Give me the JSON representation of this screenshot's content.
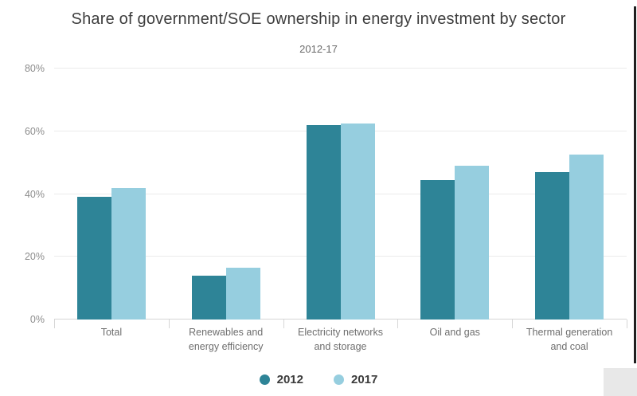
{
  "chart_data": {
    "type": "bar",
    "title": "Share of government/SOE ownership in energy investment by sector",
    "subtitle": "2012-17",
    "categories": [
      "Total",
      "Renewables and\nenergy efficiency",
      "Electricity networks\nand storage",
      "Oil and gas",
      "Thermal generation\nand coal"
    ],
    "series": [
      {
        "name": "2012",
        "color": "#2E8497",
        "values": [
          39,
          14,
          62,
          44.5,
          47
        ]
      },
      {
        "name": "2017",
        "color": "#96CEDF",
        "values": [
          42,
          16.5,
          62.5,
          49,
          52.5
        ]
      }
    ],
    "xlabel": "",
    "ylabel": "",
    "ylim": [
      0,
      80
    ],
    "y_tick_step": 20,
    "y_tick_labels": [
      "0%",
      "20%",
      "40%",
      "60%",
      "80%"
    ],
    "grid": true,
    "legend_position": "bottom"
  },
  "legend": {
    "items": [
      {
        "label": "2012",
        "color": "#2E8497"
      },
      {
        "label": "2017",
        "color": "#96CEDF"
      }
    ]
  },
  "colors": {
    "series_2012": "#2E8497",
    "series_2017": "#96CEDF",
    "grid": "#EBEBEB",
    "axis": "#D6D6D6",
    "title_text": "#3D3D3D",
    "subtitle_text": "#6A6A6A",
    "y_tick_text": "#8C8C8C",
    "x_label_text": "#6E6E6E",
    "legend_text": "#3C3C3C",
    "background": "#FFFFFF"
  }
}
